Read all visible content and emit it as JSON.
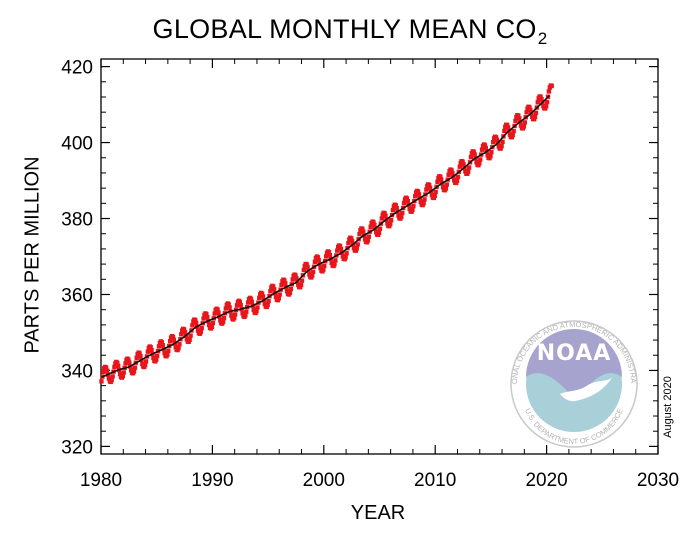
{
  "title": {
    "main": "GLOBAL MONTHLY MEAN CO",
    "subscript": "2"
  },
  "logo": {
    "name": "NOAA",
    "ring_text_top": "NATIONAL OCEANIC AND ATMOSPHERIC ADMINISTRATION",
    "ring_text_bottom": "U.S. DEPARTMENT OF COMMERCE",
    "colors": {
      "sky": "#a6a3cf",
      "sea": "#a9cfd8",
      "ring": "#c9c9c9"
    }
  },
  "date_stamp": "August 2020",
  "chart_data": {
    "type": "line",
    "xlabel": "YEAR",
    "ylabel": "PARTS PER MILLION",
    "xlim": [
      1980,
      2030
    ],
    "ylim": [
      318,
      422
    ],
    "x_ticks": [
      1980,
      1990,
      2000,
      2010,
      2020,
      2030
    ],
    "y_ticks": [
      320,
      340,
      360,
      380,
      400,
      420
    ],
    "grid": false,
    "colors": {
      "monthly": "#e8161b",
      "trend": "#111111"
    },
    "series": [
      {
        "kind": "monthly-mean",
        "x": [
          1980.5,
          1981.5,
          1982.5,
          1983.5,
          1984.5,
          1985.5,
          1986.5,
          1987.5,
          1988.5,
          1989.5,
          1990.5,
          1991.5,
          1992.5,
          1993.5,
          1994.5,
          1995.5,
          1996.5,
          1997.5,
          1998.5,
          1999.5,
          2000.5,
          2001.5,
          2002.5,
          2003.5,
          2004.5,
          2005.5,
          2006.5,
          2007.5,
          2008.5,
          2009.5,
          2010.5,
          2011.5,
          2012.5,
          2013.5,
          2014.5,
          2015.5,
          2016.5,
          2017.5,
          2018.5,
          2019.5,
          2020.3
        ],
        "values": [
          338.8,
          340.1,
          340.9,
          342.6,
          344.2,
          345.5,
          346.9,
          348.9,
          351.4,
          352.9,
          354.1,
          355.5,
          356.1,
          356.9,
          358.3,
          360.2,
          361.8,
          363.1,
          366.1,
          367.9,
          369.2,
          370.8,
          372.9,
          375.4,
          377.1,
          379.5,
          381.6,
          383.4,
          385.2,
          386.9,
          389.1,
          390.8,
          393.1,
          395.7,
          397.4,
          399.5,
          402.8,
          405.2,
          407.4,
          410.2,
          412.5
        ],
        "seasonal_amplitude": 2.3
      },
      {
        "kind": "trend",
        "x": [
          1980.5,
          1981.5,
          1982.5,
          1983.5,
          1984.5,
          1985.5,
          1986.5,
          1987.5,
          1988.5,
          1989.5,
          1990.5,
          1991.5,
          1992.5,
          1993.5,
          1994.5,
          1995.5,
          1996.5,
          1997.5,
          1998.5,
          1999.5,
          2000.5,
          2001.5,
          2002.5,
          2003.5,
          2004.5,
          2005.5,
          2006.5,
          2007.5,
          2008.5,
          2009.5,
          2010.5,
          2011.5,
          2012.5,
          2013.5,
          2014.5,
          2015.5,
          2016.5,
          2017.5,
          2018.5,
          2019.5,
          2020.3
        ],
        "values": [
          338.8,
          340.1,
          340.9,
          342.6,
          344.2,
          345.5,
          346.9,
          348.9,
          351.4,
          352.9,
          354.1,
          355.5,
          356.1,
          356.9,
          358.3,
          360.2,
          361.8,
          363.1,
          366.1,
          367.9,
          369.2,
          370.8,
          372.9,
          375.4,
          377.1,
          379.5,
          381.6,
          383.4,
          385.2,
          386.9,
          389.1,
          390.8,
          393.1,
          395.7,
          397.4,
          399.5,
          402.8,
          405.2,
          407.4,
          410.2,
          412.5
        ]
      }
    ]
  }
}
